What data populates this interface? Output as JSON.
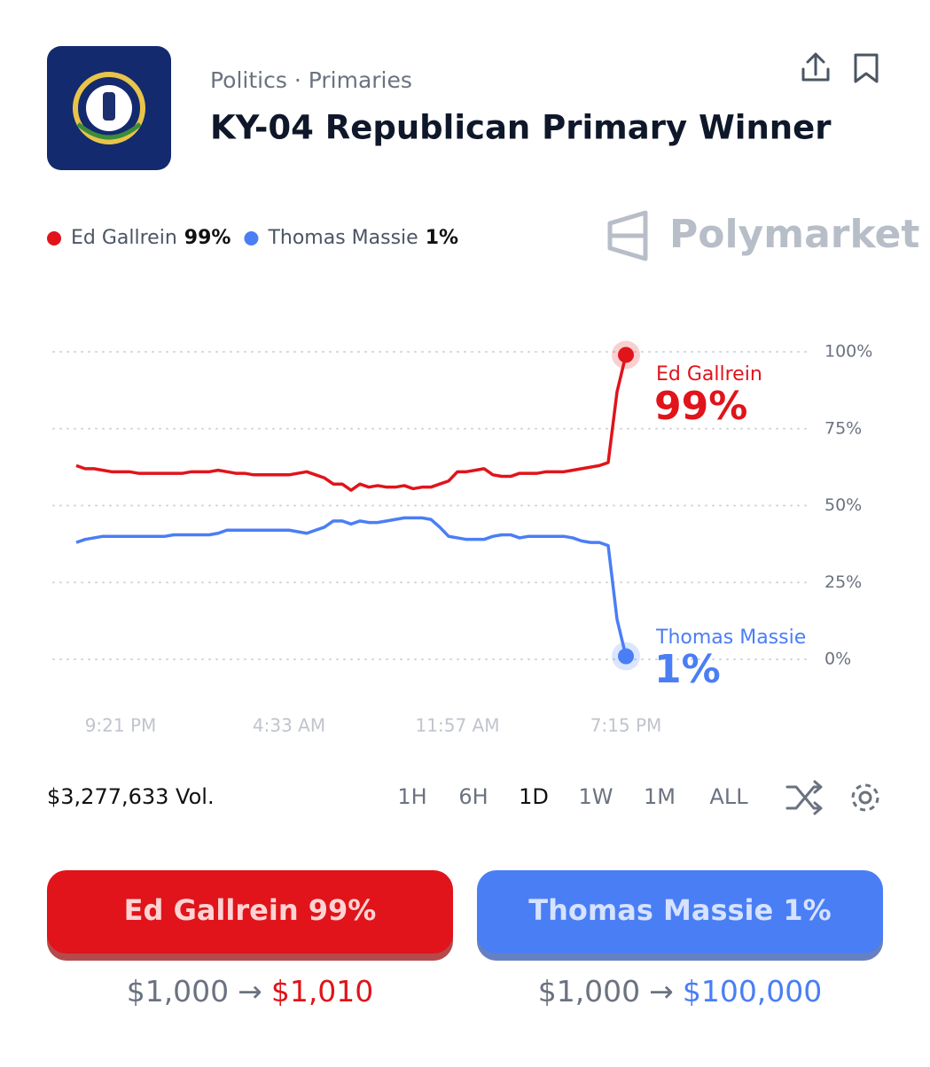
{
  "header": {
    "breadcrumb": "Politics · Primaries",
    "title": "KY-04 Republican Primary Winner",
    "brand": "Polymarket"
  },
  "chart_data": {
    "type": "line",
    "categories": [
      null,
      null,
      null,
      null,
      null,
      "9:21 PM",
      null,
      null,
      null,
      null,
      null,
      null,
      null,
      null,
      null,
      null,
      null,
      null,
      null,
      null,
      null,
      null,
      null,
      null,
      "4:33 AM",
      null,
      null,
      null,
      null,
      null,
      null,
      null,
      null,
      null,
      null,
      null,
      null,
      null,
      null,
      null,
      null,
      null,
      null,
      "11:57 AM",
      null,
      null,
      null,
      null,
      null,
      null,
      null,
      null,
      null,
      null,
      null,
      null,
      null,
      null,
      null,
      null,
      null,
      null,
      "7:15 PM"
    ],
    "series": [
      {
        "name": "Ed Gallrein",
        "color": "#e0141a",
        "end_label": "99%",
        "values": [
          63,
          62,
          62,
          61.5,
          61,
          61,
          61,
          60.5,
          60.5,
          60.5,
          60.5,
          60.5,
          60.5,
          61,
          61,
          61,
          61.5,
          61,
          60.5,
          60.5,
          60,
          60,
          60,
          60,
          60,
          60.5,
          61,
          60,
          59,
          57,
          57,
          55,
          57,
          56,
          56.5,
          56,
          56,
          56.5,
          55.5,
          56,
          56,
          57,
          58,
          61,
          61,
          61.5,
          62,
          60,
          59.5,
          59.5,
          60.5,
          60.5,
          60.5,
          61,
          61,
          61,
          61.5,
          62,
          62.5,
          63,
          64,
          87,
          99
        ]
      },
      {
        "name": "Thomas Massie",
        "color": "#4a7ef5",
        "end_label": "1%",
        "values": [
          38,
          39,
          39.5,
          40,
          40,
          40,
          40,
          40,
          40,
          40,
          40,
          40.5,
          40.5,
          40.5,
          40.5,
          40.5,
          41,
          42,
          42,
          42,
          42,
          42,
          42,
          42,
          42,
          41.5,
          41,
          42,
          43,
          45,
          45,
          44,
          45,
          44.5,
          44.5,
          45,
          45.5,
          46,
          46,
          46,
          45.5,
          43,
          40,
          39.5,
          39,
          39,
          39,
          40,
          40.5,
          40.5,
          39.5,
          40,
          40,
          40,
          40,
          40,
          39.5,
          38.5,
          38,
          38,
          37,
          13,
          1
        ]
      }
    ],
    "ylim": [
      0,
      100
    ],
    "yticks": [
      {
        "value": 0,
        "label": "0%"
      },
      {
        "value": 25,
        "label": "25%"
      },
      {
        "value": 50,
        "label": "50%"
      },
      {
        "value": 75,
        "label": "75%"
      },
      {
        "value": 100,
        "label": "100%"
      }
    ],
    "grid": true
  },
  "controls": {
    "volume": "$3,277,633 Vol.",
    "ranges": [
      "1H",
      "6H",
      "1D",
      "1W",
      "1M",
      "ALL"
    ],
    "selected": "1D"
  },
  "buttons": [
    {
      "label": "Ed Gallrein 99%",
      "stake": "$1,000",
      "payout": "$1,010"
    },
    {
      "label": "Thomas Massie 1%",
      "stake": "$1,000",
      "payout": "$100,000"
    }
  ]
}
